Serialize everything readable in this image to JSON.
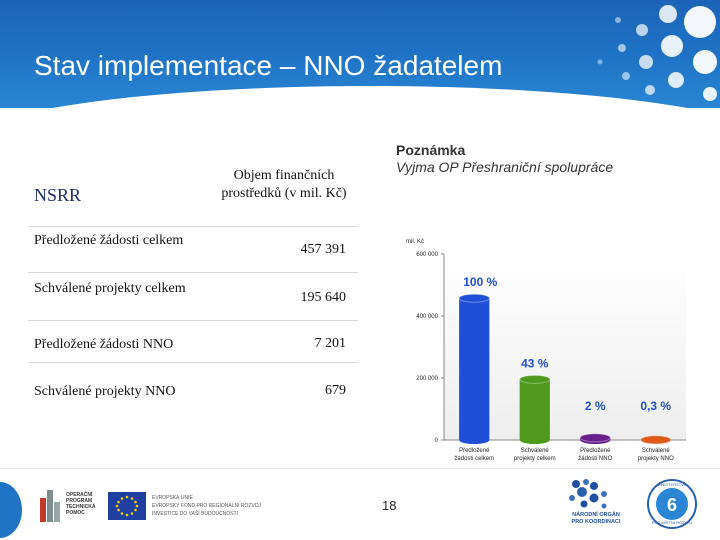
{
  "slide": {
    "title": "Stav implementace – NNO žadatelem",
    "page_number": "18"
  },
  "table": {
    "section_label": "NSRR",
    "column_header": "Objem finančních prostředků (v mil. Kč)",
    "rows": [
      {
        "label": "Předložené žádosti celkem",
        "value": "457 391"
      },
      {
        "label": "Schválené projekty celkem",
        "value": "195 640"
      },
      {
        "label": "Předložené žádosti NNO",
        "value": "7 201"
      },
      {
        "label": "Schválené projekty NNO",
        "value": "679"
      }
    ]
  },
  "note": {
    "title": "Poznámka",
    "text": "Vyjma OP Přeshraniční spolupráce"
  },
  "chart_data": {
    "type": "bar",
    "ylabel": "mil. Kč",
    "ylim": [
      0,
      600000
    ],
    "yticks": [
      "0",
      "200 000",
      "400 000",
      "600 000"
    ],
    "categories": [
      "Předložené žádosti celkem",
      "Schválené projekty celkem",
      "Předložené žádosti NNO",
      "Schválené projekty NNO"
    ],
    "category_lines": [
      [
        "Předložené",
        "žádosti celkem"
      ],
      [
        "Schválené",
        "projekty celkem"
      ],
      [
        "Předložené",
        "žádosti NNO"
      ],
      [
        "Schválené",
        "projekty NNO"
      ]
    ],
    "values": [
      457391,
      195640,
      7201,
      679
    ],
    "data_labels": [
      "100 %",
      "43 %",
      "2 %",
      "0,3 %"
    ],
    "colors": [
      "#1f4fd6",
      "#4f9a1e",
      "#6a1f8c",
      "#e05a1a"
    ],
    "label_color": "#1f4fd6"
  },
  "footer": {
    "logos": [
      {
        "name": "op-tp-logo",
        "text": [
          "OPERAČNÍ",
          "PROGRAM",
          "TECHNICKÁ",
          "POMOC"
        ]
      },
      {
        "name": "eu-logo",
        "text": [
          "EVROPSKÁ UNIE",
          "EVROPSKÝ FOND PRO REGIONÁLNÍ ROZVOJ",
          "INVESTICE DO VAŠÍ BUDOUCNOSTI"
        ]
      },
      {
        "name": "nok-logo",
        "text": [
          "NÁRODNÍ ORGÁN",
          "PRO KOORDINACI"
        ]
      },
      {
        "name": "mmr-logo",
        "text": [
          "MINISTERSTVO",
          "PRO MÍSTNÍ ROZVOJ"
        ]
      }
    ]
  }
}
